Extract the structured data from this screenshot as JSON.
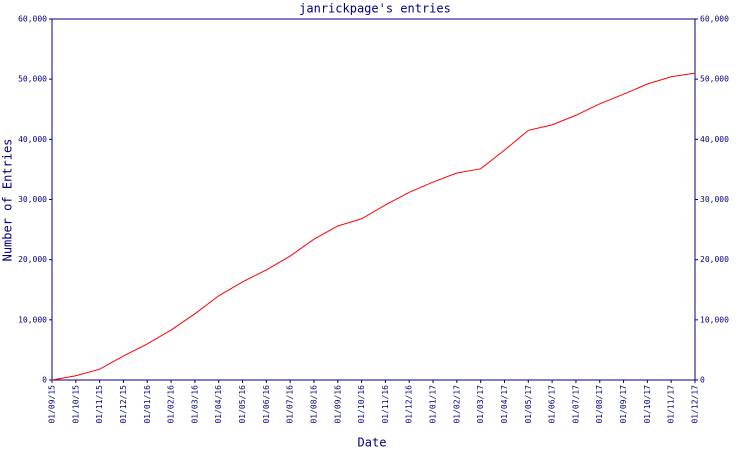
{
  "chart_data": {
    "type": "line",
    "title": "janrickpage's entries",
    "x_label": "Date",
    "y_label": "Number of Entries",
    "categories": [
      "01/09/15",
      "01/10/15",
      "01/11/15",
      "01/12/15",
      "01/01/16",
      "01/02/16",
      "01/03/16",
      "01/04/16",
      "01/05/16",
      "01/06/16",
      "01/07/16",
      "01/08/16",
      "01/09/16",
      "01/10/16",
      "01/11/16",
      "01/12/16",
      "01/01/17",
      "01/02/17",
      "01/03/17",
      "01/04/17",
      "01/05/17",
      "01/06/17",
      "01/07/17",
      "01/08/17",
      "01/09/17",
      "01/10/17",
      "01/11/17",
      "01/12/17"
    ],
    "series": [
      {
        "name": "Entries",
        "color": "#ff0000",
        "values": [
          0,
          700,
          1800,
          4000,
          6000,
          8300,
          11000,
          14000,
          16300,
          18300,
          20600,
          23400,
          25600,
          26800,
          29100,
          31200,
          32900,
          34400,
          35100,
          38200,
          41500,
          42400,
          44000,
          45900,
          47500,
          49200,
          50400,
          51000
        ]
      }
    ],
    "ylim": [
      0,
      60000
    ],
    "yticks": [
      0,
      {
        "value": 10000,
        "label": "10,000"
      },
      {
        "value": 20000,
        "label": "20,000"
      },
      {
        "value": 30000,
        "label": "30,000"
      },
      {
        "value": 40000,
        "label": "40,000"
      },
      {
        "value": 50000,
        "label": "50,000"
      },
      {
        "value": 60000,
        "label": "60,000"
      }
    ],
    "axis_color": "#000080",
    "grid": false
  }
}
